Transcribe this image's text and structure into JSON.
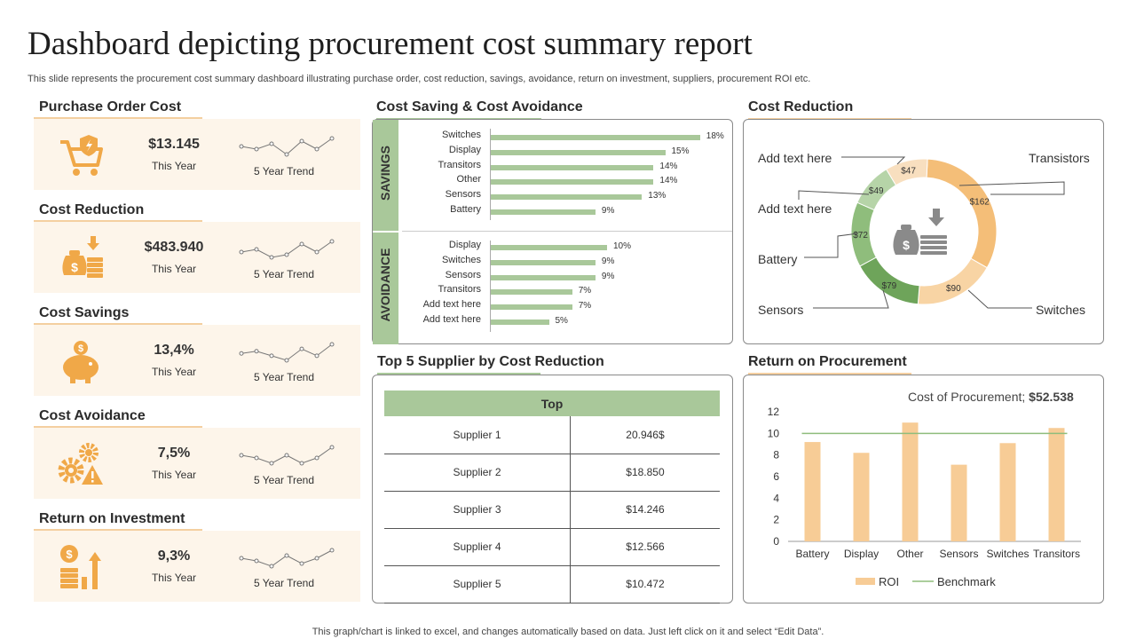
{
  "page": {
    "title": "Dashboard depicting procurement cost summary report",
    "subtitle": "This slide represents the procurement cost summary dashboard illustrating purchase order, cost reduction, savings, avoidance, return on investment, suppliers, procurement ROI etc.",
    "footer": "This graph/chart is linked to excel,  and changes automatically based on data. Just left click on it and select “Edit Data”."
  },
  "colors": {
    "accent": "#f0a848",
    "accent_light": "#f4cfa0",
    "green": "#a9c89a",
    "green_dark": "#6ea45a",
    "card_bg": "#fdf5ea"
  },
  "kpis": [
    {
      "heading": "Purchase Order Cost",
      "value": "$13.145",
      "label": "This Year",
      "trend_label": "5 Year Trend",
      "icon": "cart-shield-icon",
      "trend": [
        4,
        3,
        5,
        1,
        6,
        3,
        7
      ]
    },
    {
      "heading": "Cost Reduction",
      "value": "$483.940",
      "label": "This Year",
      "trend_label": "5 Year Trend",
      "icon": "money-bag-coins-icon",
      "trend": [
        4,
        5,
        2,
        3,
        7,
        4,
        8
      ]
    },
    {
      "heading": "Cost Savings",
      "value": "13,4%",
      "label": "This Year",
      "trend_label": "5 Year Trend",
      "icon": "piggy-bank-icon",
      "trend": [
        4,
        5,
        3,
        1,
        6,
        3,
        8
      ]
    },
    {
      "heading": "Cost Avoidance",
      "value": "7,5%",
      "label": "This Year",
      "trend_label": "5 Year Trend",
      "icon": "gears-warning-icon",
      "trend": [
        5,
        4,
        2,
        5,
        2,
        4,
        8
      ]
    },
    {
      "heading": "Return on Investment",
      "value": "9,3%",
      "label": "This Year",
      "trend_label": "5 Year Trend",
      "icon": "dollar-growth-icon",
      "trend": [
        5,
        4,
        2,
        6,
        3,
        5,
        8
      ]
    }
  ],
  "saving_panel": {
    "heading": "Cost Saving & Cost Avoidance",
    "savings_label": "SAVINGS",
    "avoidance_label": "AVOIDANCE"
  },
  "reduction_panel": {
    "heading": "Cost Reduction"
  },
  "supplier_panel": {
    "heading": "Top 5 Supplier by Cost Reduction",
    "header": "Top",
    "rows": [
      {
        "name": "Supplier 1",
        "value": "20.946$"
      },
      {
        "name": "Supplier 2",
        "value": "$18.850"
      },
      {
        "name": "Supplier 3",
        "value": "$14.246"
      },
      {
        "name": "Supplier 4",
        "value": "$12.566"
      },
      {
        "name": "Supplier 5",
        "value": "$10.472"
      }
    ]
  },
  "roi_panel": {
    "heading": "Return on Procurement",
    "cost_prefix": "Cost of Procurement; ",
    "cost_value": "$52.538"
  },
  "chart_data": [
    {
      "type": "bar",
      "title": "Cost Saving & Cost Avoidance",
      "orientation": "horizontal",
      "groups": [
        {
          "name": "SAVINGS",
          "categories": [
            "Switches",
            "Display",
            "Transitors",
            "Other",
            "Sensors",
            "Battery"
          ],
          "values": [
            18,
            15,
            14,
            14,
            13,
            9
          ],
          "labels": [
            "18%",
            "15%",
            "14%",
            "14%",
            "13%",
            "9%"
          ]
        },
        {
          "name": "AVOIDANCE",
          "categories": [
            "Display",
            "Switches",
            "Sensors",
            "Transitors",
            "Add text here",
            "Add text here"
          ],
          "values": [
            10,
            9,
            9,
            7,
            7,
            5
          ],
          "labels": [
            "10%",
            "9%",
            "9%",
            "7%",
            "7%",
            "5%"
          ]
        }
      ],
      "unit": "%"
    },
    {
      "type": "pie",
      "title": "Cost Reduction",
      "donut": true,
      "slices": [
        {
          "name": "Transistors",
          "value": 162,
          "label": "$162",
          "color": "#f4be78"
        },
        {
          "name": "Switches",
          "value": 90,
          "label": "$90",
          "color": "#f8d4a4"
        },
        {
          "name": "Sensors",
          "value": 79,
          "label": "$79",
          "color": "#6ea45a"
        },
        {
          "name": "Battery",
          "value": 72,
          "label": "$72",
          "color": "#8fbd7c"
        },
        {
          "name": "Add text here",
          "value": 49,
          "label": "$49",
          "color": "#b6d4a8"
        },
        {
          "name": "Add text here",
          "value": 47,
          "label": "$47",
          "color": "#f8dfbf"
        }
      ]
    },
    {
      "type": "bar",
      "title": "Return on Procurement",
      "categories": [
        "Battery",
        "Display",
        "Other",
        "Sensors",
        "Switches",
        "Transitors"
      ],
      "series": [
        {
          "name": "ROI",
          "values": [
            9.2,
            8.2,
            11,
            7.1,
            9.1,
            10.5
          ]
        },
        {
          "name": "Benchmark",
          "values": [
            10,
            10,
            10,
            10,
            10,
            10
          ]
        }
      ],
      "ylim": [
        0,
        12
      ],
      "yticks": [
        "0",
        "2",
        "4",
        "6",
        "8",
        "10",
        "12"
      ]
    }
  ]
}
